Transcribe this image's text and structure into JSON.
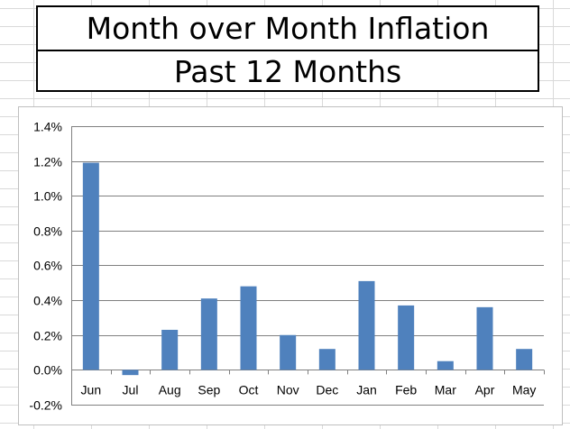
{
  "header": {
    "title": "Month over Month Inflation",
    "subtitle": "Past 12 Months"
  },
  "colors": {
    "bar": "#4f81bd",
    "grid": "#808080",
    "cell_grid": "#d9d9d9"
  },
  "chart_data": {
    "type": "bar",
    "title": "",
    "xlabel": "",
    "ylabel": "",
    "categories": [
      "Jun",
      "Jul",
      "Aug",
      "Sep",
      "Oct",
      "Nov",
      "Dec",
      "Jan",
      "Feb",
      "Mar",
      "Apr",
      "May"
    ],
    "values": [
      1.19,
      -0.03,
      0.23,
      0.41,
      0.48,
      0.2,
      0.12,
      0.51,
      0.37,
      0.05,
      0.36,
      0.12
    ],
    "unit": "%",
    "ylim": [
      -0.2,
      1.4
    ],
    "yticks": [
      1.4,
      1.2,
      1.0,
      0.8,
      0.6,
      0.4,
      0.2,
      0.0,
      -0.2
    ],
    "ytick_labels": [
      "1.4%",
      "1.2%",
      "1.0%",
      "0.8%",
      "0.6%",
      "0.4%",
      "0.2%",
      "0.0%",
      "-0.2%"
    ],
    "grid": true,
    "legend": "none"
  }
}
